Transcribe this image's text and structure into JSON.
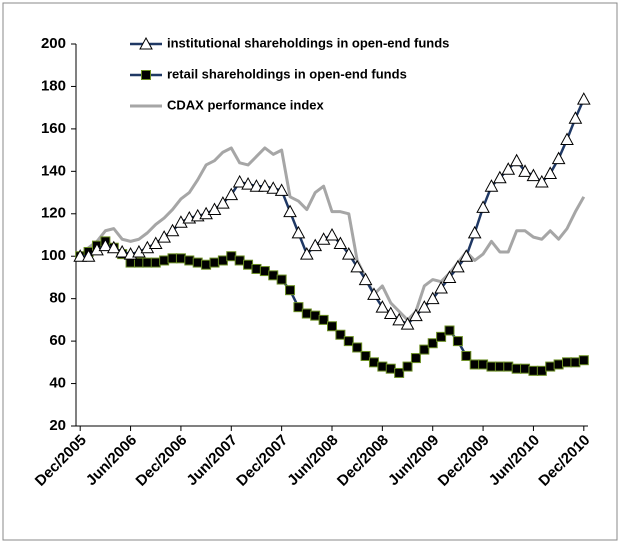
{
  "chart_data": {
    "type": "line",
    "categories": [
      "Dec/2005",
      null,
      null,
      null,
      null,
      null,
      "Jun/2006",
      null,
      null,
      null,
      null,
      null,
      "Dec/2006",
      null,
      null,
      null,
      null,
      null,
      "Jun/2007",
      null,
      null,
      null,
      null,
      null,
      "Dec/2007",
      null,
      null,
      null,
      null,
      null,
      "Jun/2008",
      null,
      null,
      null,
      null,
      null,
      "Dec/2008",
      null,
      null,
      null,
      null,
      null,
      "Jun/2009",
      null,
      null,
      null,
      null,
      null,
      "Dec/2009",
      null,
      null,
      null,
      null,
      null,
      "Jun/2010",
      null,
      null,
      null,
      null,
      null,
      "Dec/2010"
    ],
    "series": [
      {
        "name": "institutional shareholdings in open-end funds",
        "color": "#1f3864",
        "marker": "triangle",
        "values": [
          100,
          100,
          103,
          105,
          104,
          102,
          101,
          102,
          104,
          106,
          109,
          112,
          116,
          118,
          119,
          120,
          122,
          125,
          129,
          135,
          134,
          133,
          133,
          132,
          131,
          121,
          111,
          101,
          105,
          108,
          110,
          106,
          101,
          95,
          89,
          82,
          76,
          73,
          70,
          68,
          72,
          76,
          80,
          85,
          90,
          95,
          100,
          111,
          123,
          133,
          137,
          141,
          145,
          140,
          138,
          135,
          139,
          146,
          155,
          165,
          174
        ]
      },
      {
        "name": "retail shareholdings in open-end funds",
        "color": "#1f3864",
        "marker": "square",
        "values": [
          100,
          102,
          105,
          107,
          104,
          101,
          97,
          97,
          97,
          97,
          98,
          99,
          99,
          98,
          97,
          96,
          97,
          98,
          100,
          98,
          96,
          94,
          93,
          91,
          89,
          84,
          76,
          73,
          72,
          70,
          67,
          63,
          60,
          57,
          53,
          50,
          48,
          47,
          45,
          48,
          52,
          56,
          59,
          62,
          65,
          60,
          53,
          49,
          49,
          48,
          48,
          48,
          47,
          47,
          46,
          46,
          48,
          49,
          50,
          50,
          51
        ]
      },
      {
        "name": "CDAX performance index",
        "color": "#a6a6a6",
        "marker": "none",
        "values": [
          100,
          104,
          107,
          112,
          113,
          108,
          107,
          108,
          111,
          115,
          118,
          122,
          127,
          130,
          136,
          143,
          145,
          149,
          151,
          144,
          143,
          147,
          151,
          148,
          150,
          128,
          126,
          122,
          130,
          133,
          121,
          121,
          120,
          98,
          90,
          82,
          86,
          78,
          74,
          70,
          74,
          86,
          89,
          88,
          92,
          97,
          102,
          98,
          101,
          107,
          102,
          102,
          112,
          112,
          109,
          108,
          112,
          108,
          113,
          121,
          128
        ]
      }
    ],
    "ylim": [
      20,
      200
    ],
    "yticks": [
      20,
      40,
      60,
      80,
      100,
      120,
      140,
      160,
      180,
      200
    ],
    "grid": false,
    "legend": "top-left"
  }
}
